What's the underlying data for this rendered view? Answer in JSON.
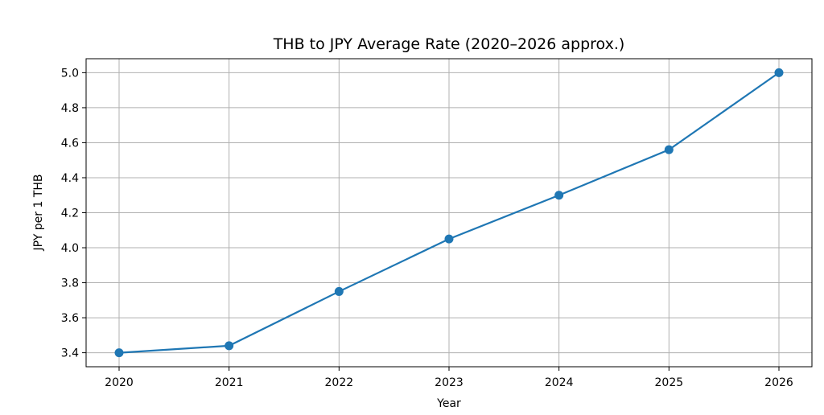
{
  "chart_data": {
    "type": "line",
    "title": "THB to JPY Average Rate (2020–2026 approx.)",
    "xlabel": "Year",
    "ylabel": "JPY per 1 THB",
    "x": [
      2020,
      2021,
      2022,
      2023,
      2024,
      2025,
      2026
    ],
    "series": [
      {
        "values": [
          3.4,
          3.44,
          3.75,
          4.05,
          4.3,
          4.56,
          5.0
        ]
      }
    ],
    "x_ticks": [
      "2020",
      "2021",
      "2022",
      "2023",
      "2024",
      "2025",
      "2026"
    ],
    "y_ticks": [
      "3.4",
      "3.6",
      "3.8",
      "4.0",
      "4.2",
      "4.4",
      "4.6",
      "4.8",
      "5.0"
    ],
    "xlim": [
      2019.7,
      2026.3
    ],
    "ylim": [
      3.32,
      5.08
    ],
    "grid": true,
    "marker": "circle",
    "colors": {
      "line": "#1f77b4",
      "grid": "#b0b0b0",
      "axes": "#000000"
    }
  }
}
